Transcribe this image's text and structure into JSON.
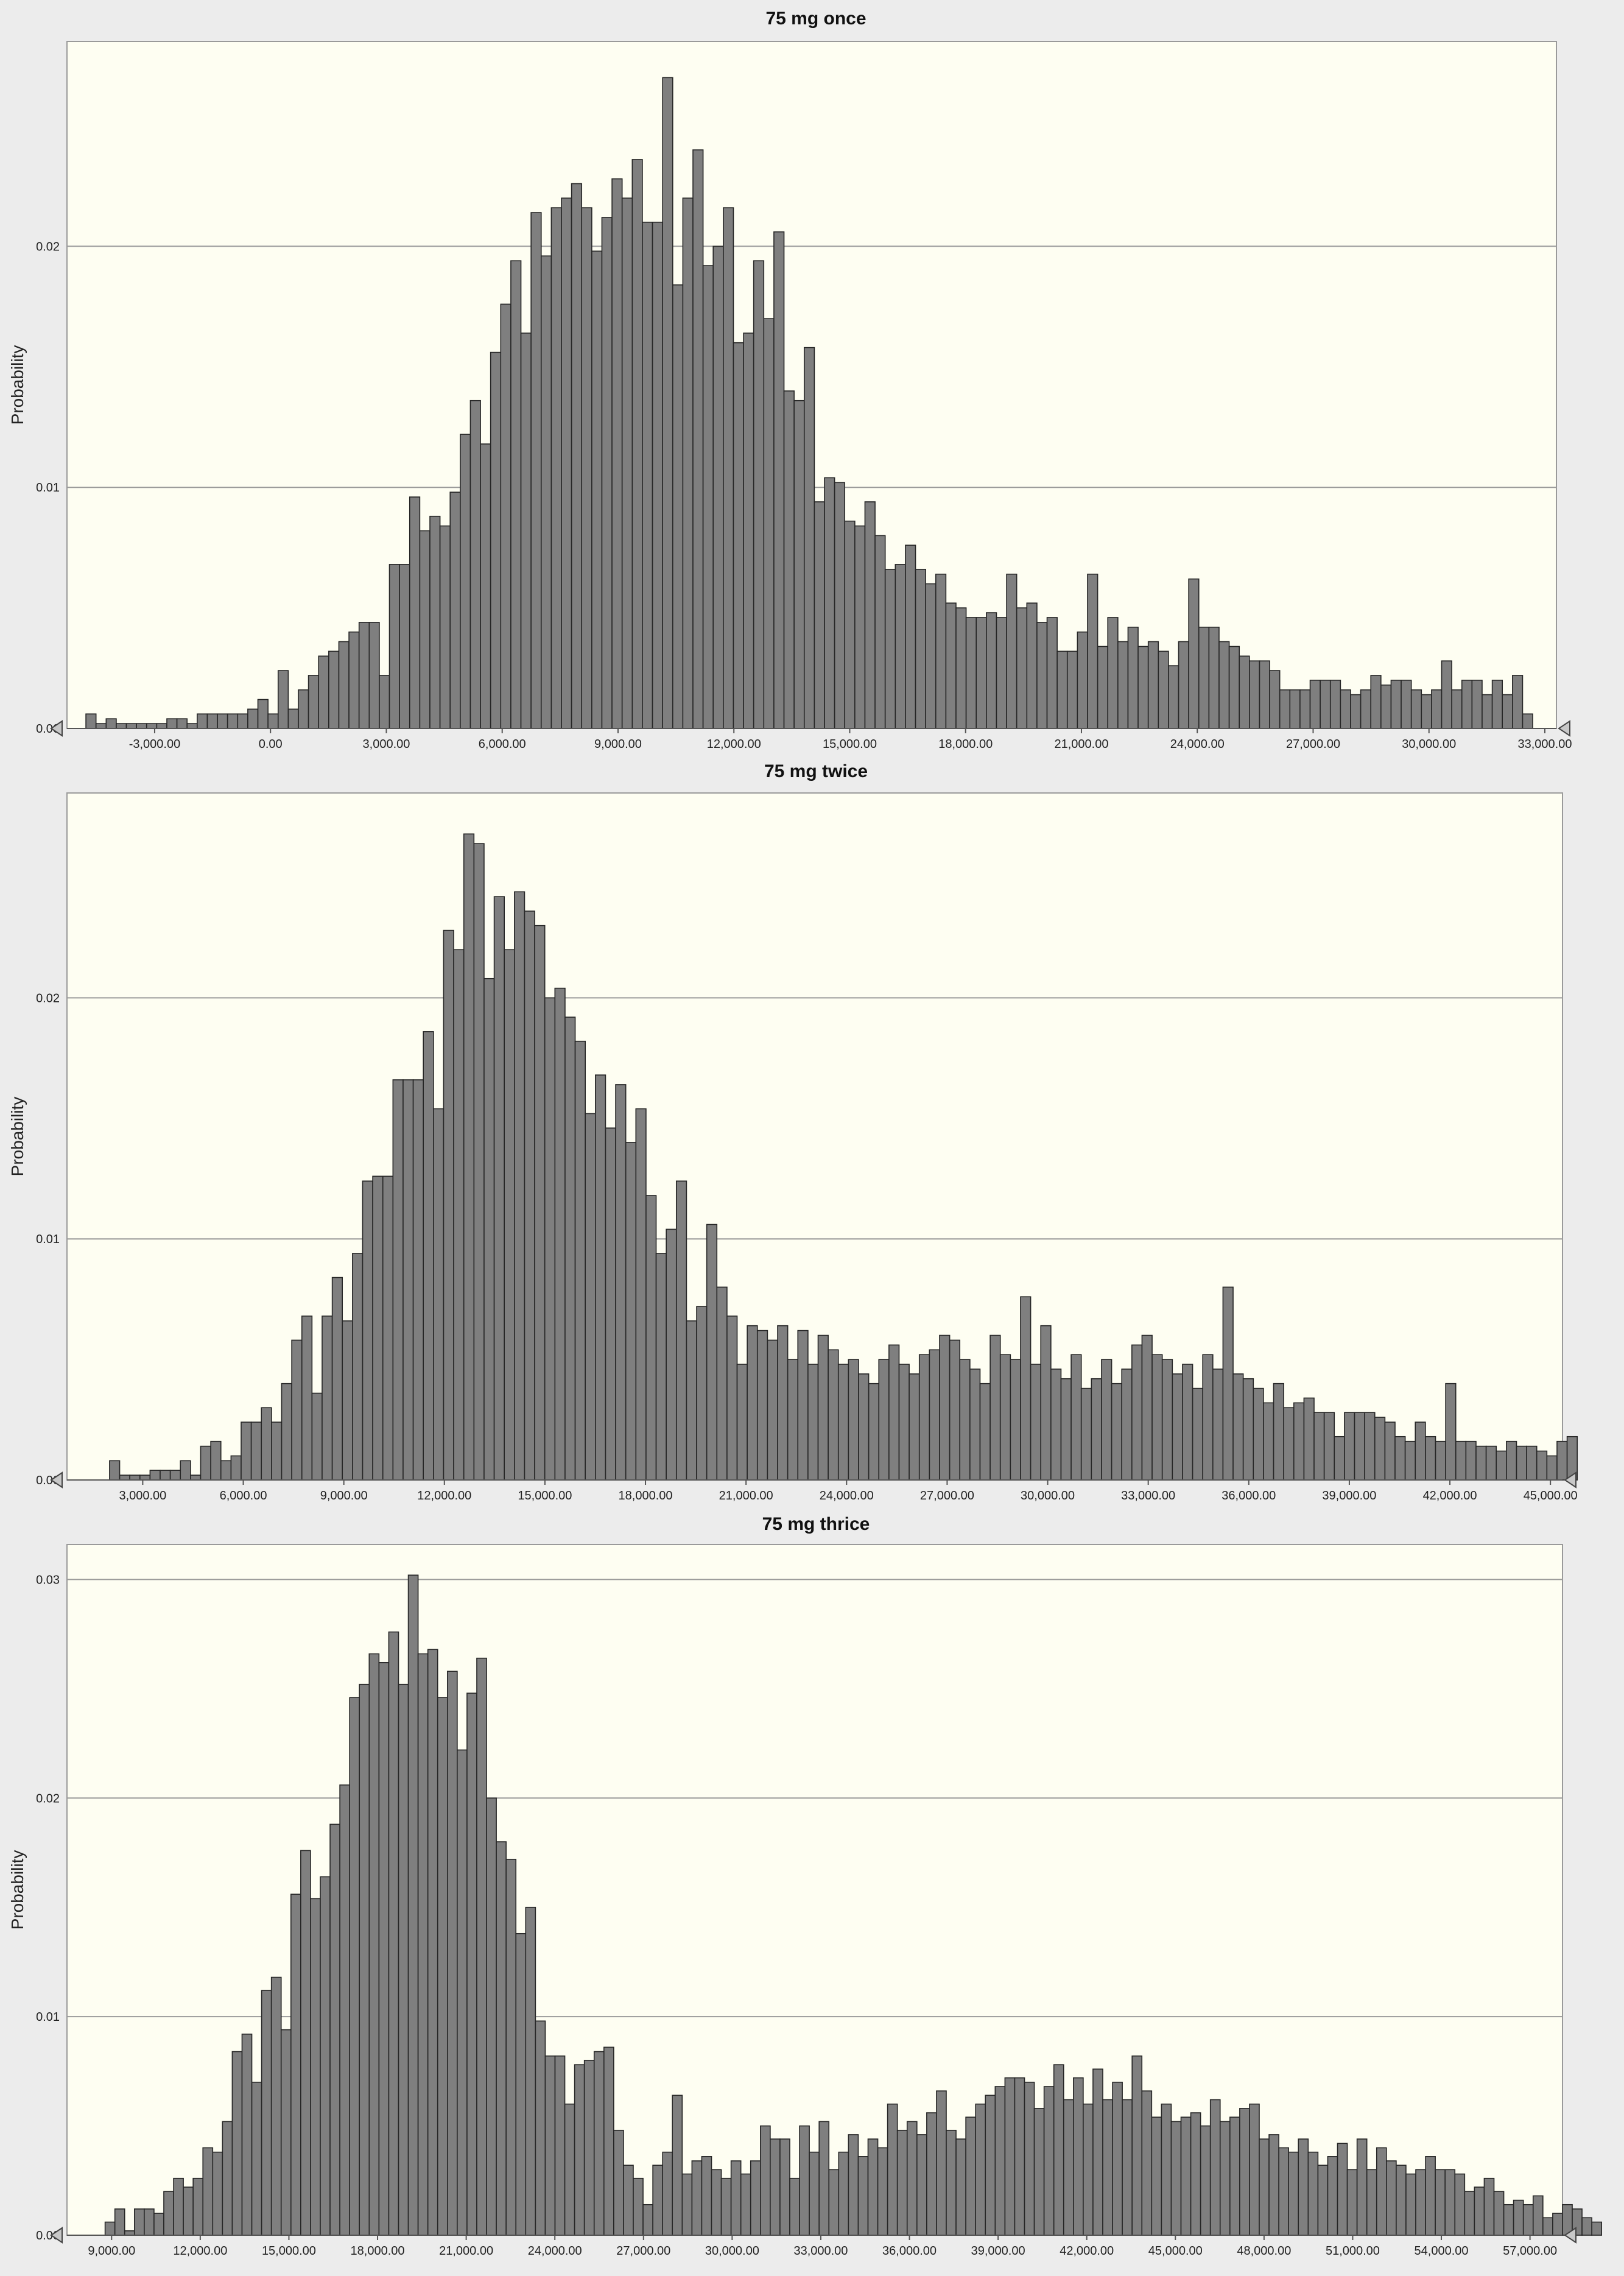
{
  "colors": {
    "plot_background": "#fefef2",
    "bar_fill": "#7f7f7f",
    "bar_stroke": "#262626",
    "gridline": "#9a9a9a",
    "page_background": "#ececec"
  },
  "icons": [
    "left-slider-triangle-icon",
    "right-slider-triangle-icon"
  ],
  "chart_data": [
    {
      "type": "bar",
      "title": "75 mg once",
      "ylabel": "Probability",
      "xlabel": "",
      "grid": true,
      "xlim": [
        -5270,
        33300
      ],
      "ylim": [
        0,
        0.0285
      ],
      "yticks": [
        0,
        0.01,
        0.02
      ],
      "ytick_labels": [
        "0.00",
        "0.01",
        "0.02"
      ],
      "xticks": [
        -3000,
        0,
        3000,
        6000,
        9000,
        12000,
        15000,
        18000,
        21000,
        24000,
        27000,
        30000,
        33000
      ],
      "xtick_labels": [
        "-3,000.00",
        "0.00",
        "3,000.00",
        "6,000.00",
        "9,000.00",
        "12,000.00",
        "15,000.00",
        "18,000.00",
        "21,000.00",
        "24,000.00",
        "27,000.00",
        "30,000.00",
        "33,000.00"
      ],
      "bin_start": -4780,
      "bin_width": 262,
      "values": [
        0.0006,
        0.0002,
        0.0004,
        0.0002,
        0.0002,
        0.0002,
        0.0002,
        0.0002,
        0.0004,
        0.0004,
        0.0002,
        0.0006,
        0.0006,
        0.0006,
        0.0006,
        0.0006,
        0.0008,
        0.0012,
        0.0006,
        0.0024,
        0.0008,
        0.0016,
        0.0022,
        0.003,
        0.0032,
        0.0036,
        0.004,
        0.0044,
        0.0044,
        0.0022,
        0.0068,
        0.0068,
        0.0096,
        0.0082,
        0.0088,
        0.0084,
        0.0098,
        0.0122,
        0.0136,
        0.0118,
        0.0156,
        0.0176,
        0.0194,
        0.0164,
        0.0214,
        0.0196,
        0.0216,
        0.022,
        0.0226,
        0.0216,
        0.0198,
        0.0212,
        0.0228,
        0.022,
        0.0236,
        0.021,
        0.021,
        0.027,
        0.0184,
        0.022,
        0.024,
        0.0192,
        0.02,
        0.0216,
        0.016,
        0.0164,
        0.0194,
        0.017,
        0.0206,
        0.014,
        0.0136,
        0.0158,
        0.0094,
        0.0104,
        0.0102,
        0.0086,
        0.0084,
        0.0094,
        0.008,
        0.0066,
        0.0068,
        0.0076,
        0.0066,
        0.006,
        0.0064,
        0.0052,
        0.005,
        0.0046,
        0.0046,
        0.0048,
        0.0046,
        0.0064,
        0.005,
        0.0052,
        0.0044,
        0.0046,
        0.0032,
        0.0032,
        0.004,
        0.0064,
        0.0034,
        0.0046,
        0.0036,
        0.0042,
        0.0034,
        0.0036,
        0.0032,
        0.0026,
        0.0036,
        0.0062,
        0.0042,
        0.0042,
        0.0036,
        0.0034,
        0.003,
        0.0028,
        0.0028,
        0.0024,
        0.0016,
        0.0016,
        0.0016,
        0.002,
        0.002,
        0.002,
        0.0016,
        0.0014,
        0.0016,
        0.0022,
        0.0018,
        0.002,
        0.002,
        0.0016,
        0.0014,
        0.0016,
        0.0028,
        0.0016,
        0.002,
        0.002,
        0.0014,
        0.002,
        0.0014,
        0.0022,
        0.0006
      ]
    },
    {
      "type": "bar",
      "title": "75 mg twice",
      "ylabel": "Probability",
      "xlabel": "",
      "grid": true,
      "xlim": [
        740,
        45360
      ],
      "ylim": [
        0,
        0.0285
      ],
      "yticks": [
        0,
        0.01,
        0.02
      ],
      "ytick_labels": [
        "0.00",
        "0.01",
        "0.02"
      ],
      "xticks": [
        3000,
        6000,
        9000,
        12000,
        15000,
        18000,
        21000,
        24000,
        27000,
        30000,
        33000,
        36000,
        39000,
        42000,
        45000
      ],
      "xtick_labels": [
        "3,000.00",
        "6,000.00",
        "9,000.00",
        "12,000.00",
        "15,000.00",
        "18,000.00",
        "21,000.00",
        "24,000.00",
        "27,000.00",
        "30,000.00",
        "33,000.00",
        "36,000.00",
        "39,000.00",
        "42,000.00",
        "45,000.00"
      ],
      "bin_start": 2010,
      "bin_width": 302,
      "values": [
        0.0008,
        0.0002,
        0.0002,
        0.0002,
        0.0004,
        0.0004,
        0.0004,
        0.0008,
        0.0002,
        0.0014,
        0.0016,
        0.0008,
        0.001,
        0.0024,
        0.0024,
        0.003,
        0.0024,
        0.004,
        0.0058,
        0.0068,
        0.0036,
        0.0068,
        0.0084,
        0.0066,
        0.0094,
        0.0124,
        0.0126,
        0.0126,
        0.0166,
        0.0166,
        0.0166,
        0.0186,
        0.0154,
        0.0228,
        0.022,
        0.0268,
        0.0264,
        0.0208,
        0.0242,
        0.022,
        0.0244,
        0.0236,
        0.023,
        0.02,
        0.0204,
        0.0192,
        0.0182,
        0.0152,
        0.0168,
        0.0146,
        0.0164,
        0.014,
        0.0154,
        0.0118,
        0.0094,
        0.0104,
        0.0124,
        0.0066,
        0.0072,
        0.0106,
        0.008,
        0.0068,
        0.0048,
        0.0064,
        0.0062,
        0.0058,
        0.0064,
        0.005,
        0.0062,
        0.0048,
        0.006,
        0.0054,
        0.0048,
        0.005,
        0.0044,
        0.004,
        0.005,
        0.0056,
        0.0048,
        0.0044,
        0.0052,
        0.0054,
        0.006,
        0.0058,
        0.005,
        0.0046,
        0.004,
        0.006,
        0.0052,
        0.005,
        0.0076,
        0.0048,
        0.0064,
        0.0046,
        0.0042,
        0.0052,
        0.0038,
        0.0042,
        0.005,
        0.004,
        0.0046,
        0.0056,
        0.006,
        0.0052,
        0.005,
        0.0044,
        0.0048,
        0.0038,
        0.0052,
        0.0046,
        0.008,
        0.0044,
        0.0042,
        0.0038,
        0.0032,
        0.004,
        0.003,
        0.0032,
        0.0034,
        0.0028,
        0.0028,
        0.0018,
        0.0028,
        0.0028,
        0.0028,
        0.0026,
        0.0024,
        0.0018,
        0.0016,
        0.0024,
        0.0018,
        0.0016,
        0.004,
        0.0016,
        0.0016,
        0.0014,
        0.0014,
        0.0012,
        0.0016,
        0.0014,
        0.0014,
        0.0012,
        0.001,
        0.0016,
        0.0018
      ]
    },
    {
      "type": "bar",
      "title": "75 mg thrice",
      "ylabel": "Probability",
      "xlabel": "",
      "grid": true,
      "xlim": [
        7490,
        58100
      ],
      "ylim": [
        0,
        0.0316
      ],
      "yticks": [
        0,
        0.01,
        0.02,
        0.03
      ],
      "ytick_labels": [
        "0.00",
        "0.01",
        "0.02",
        "0.03"
      ],
      "xticks": [
        9000,
        12000,
        15000,
        18000,
        21000,
        24000,
        27000,
        30000,
        33000,
        36000,
        39000,
        42000,
        45000,
        48000,
        51000,
        54000,
        57000
      ],
      "xtick_labels": [
        "9,000.00",
        "12,000.00",
        "15,000.00",
        "18,000.00",
        "21,000.00",
        "24,000.00",
        "27,000.00",
        "30,000.00",
        "33,000.00",
        "36,000.00",
        "39,000.00",
        "42,000.00",
        "45,000.00",
        "48,000.00",
        "51,000.00",
        "54,000.00",
        "57,000.00"
      ],
      "bin_start": 8780,
      "bin_width": 331,
      "values": [
        0.0006,
        0.0012,
        0.0002,
        0.0012,
        0.0012,
        0.001,
        0.002,
        0.0026,
        0.0022,
        0.0026,
        0.004,
        0.0038,
        0.0052,
        0.0084,
        0.0092,
        0.007,
        0.0112,
        0.0118,
        0.0094,
        0.0156,
        0.0176,
        0.0154,
        0.0164,
        0.0188,
        0.0206,
        0.0246,
        0.0252,
        0.0266,
        0.0262,
        0.0276,
        0.0252,
        0.0302,
        0.0266,
        0.0268,
        0.0246,
        0.0258,
        0.0222,
        0.0248,
        0.0264,
        0.02,
        0.018,
        0.0172,
        0.0138,
        0.015,
        0.0098,
        0.0082,
        0.0082,
        0.006,
        0.0078,
        0.008,
        0.0084,
        0.0086,
        0.0048,
        0.0032,
        0.0026,
        0.0014,
        0.0032,
        0.0038,
        0.0064,
        0.0028,
        0.0034,
        0.0036,
        0.003,
        0.0026,
        0.0034,
        0.0028,
        0.0034,
        0.005,
        0.0044,
        0.0044,
        0.0026,
        0.005,
        0.0038,
        0.0052,
        0.003,
        0.0038,
        0.0046,
        0.0036,
        0.0044,
        0.004,
        0.006,
        0.0048,
        0.0052,
        0.0046,
        0.0056,
        0.0066,
        0.0048,
        0.0044,
        0.0054,
        0.006,
        0.0064,
        0.0068,
        0.0072,
        0.0072,
        0.007,
        0.0058,
        0.0068,
        0.0078,
        0.0062,
        0.0072,
        0.006,
        0.0076,
        0.0062,
        0.007,
        0.0062,
        0.0082,
        0.0066,
        0.0054,
        0.006,
        0.0052,
        0.0054,
        0.0056,
        0.005,
        0.0062,
        0.0052,
        0.0054,
        0.0058,
        0.006,
        0.0044,
        0.0046,
        0.004,
        0.0038,
        0.0044,
        0.0038,
        0.0032,
        0.0036,
        0.0042,
        0.003,
        0.0044,
        0.003,
        0.004,
        0.0034,
        0.0032,
        0.0028,
        0.003,
        0.0036,
        0.003,
        0.003,
        0.0028,
        0.002,
        0.0022,
        0.0026,
        0.002,
        0.0014,
        0.0016,
        0.0014,
        0.0018,
        0.0008,
        0.001,
        0.0014,
        0.0012,
        0.0008,
        0.0006
      ]
    }
  ]
}
